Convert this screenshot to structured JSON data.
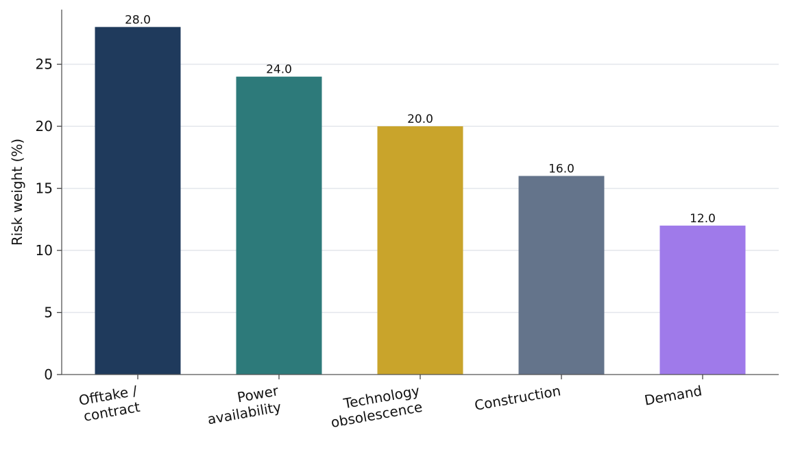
{
  "chart_data": {
    "type": "bar",
    "categories": [
      [
        "Offtake /",
        "contract"
      ],
      [
        "Power",
        "availability"
      ],
      [
        "Technology",
        "obsolescence"
      ],
      [
        "Construction"
      ],
      [
        "Demand"
      ]
    ],
    "values": [
      28.0,
      24.0,
      20.0,
      16.0,
      12.0
    ],
    "value_labels": [
      "28.0",
      "24.0",
      "20.0",
      "16.0",
      "12.0"
    ],
    "colors": [
      "#1f3a5c",
      "#2d7a7a",
      "#c9a42b",
      "#64748b",
      "#9f7aea"
    ],
    "title": "",
    "xlabel": "",
    "ylabel": "Risk weight (%)",
    "ylim": [
      0,
      29.4
    ],
    "yticks": [
      0,
      5,
      10,
      15,
      20,
      25
    ],
    "grid": "horizontal",
    "legend": "none"
  }
}
